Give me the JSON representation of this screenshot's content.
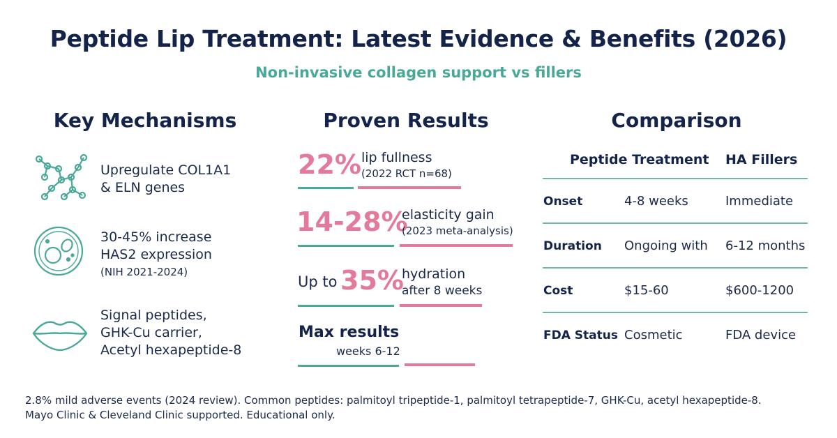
{
  "title": "Peptide Lip Treatment: Latest Evidence & Benefits (2026)",
  "subtitle": "Non-invasive collagen support vs fillers",
  "mechanisms": {
    "heading": "Key Mechanisms",
    "items": [
      {
        "icon": "molecule-icon",
        "lines": [
          "Upregulate COL1A1",
          "& ELN genes"
        ]
      },
      {
        "icon": "cell-icon",
        "lines": [
          "30-45% increase",
          "HAS2 expression"
        ],
        "note": "(NIH 2021-2024)"
      },
      {
        "icon": "lips-icon",
        "lines": [
          "Signal peptides,",
          "GHK-Cu carrier,",
          "Acetyl hexapeptide-8"
        ]
      }
    ]
  },
  "results": {
    "heading": "Proven Results",
    "items": [
      {
        "value": "22%",
        "label": "lip fullness",
        "sub": "(2022 RCT n=68)"
      },
      {
        "value": "14-28%",
        "label": "elasticity gain",
        "sub": "(2023 meta-analysis)"
      },
      {
        "prefix": "Up to",
        "value": "35%",
        "label": "hydration",
        "sub": "after 8 weeks"
      },
      {
        "label": "Max results",
        "sub": "weeks 6-12"
      }
    ]
  },
  "comparison": {
    "heading": "Comparison",
    "columns": [
      "Peptide Treatment",
      "HA Fillers"
    ],
    "rows": [
      {
        "label": "Onset",
        "peptide": "4-8 weeks",
        "filler": "Immediate"
      },
      {
        "label": "Duration",
        "peptide": "Ongoing with",
        "filler": "6-12 months"
      },
      {
        "label": "Cost",
        "peptide": "$15-60",
        "filler": "$600-1200"
      },
      {
        "label": "FDA Status",
        "peptide": "Cosmetic",
        "filler": "FDA device"
      }
    ]
  },
  "footer": {
    "line1": "2.8% mild adverse events (2024 review). Common peptides: palmitoyl tripeptide-1, palmitoyl tetrapeptide-7, GHK-Cu, acetyl hexapeptide-8.",
    "line2": "Mayo Clinic & Cleveland Clinic supported. Educational only."
  },
  "colors": {
    "navy": "#13234a",
    "teal": "#4aa898",
    "pink": "#e47a9b"
  }
}
